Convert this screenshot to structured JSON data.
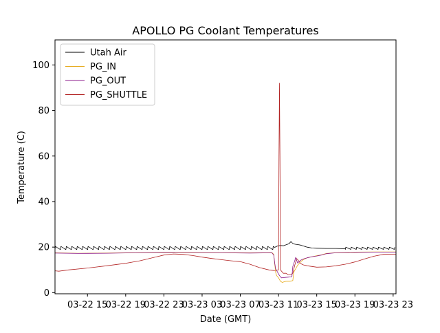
{
  "chart_data": {
    "type": "line",
    "title": "APOLLO PG Coolant Temperatures",
    "xlabel": "Date (GMT)",
    "ylabel": "Temperature (C)",
    "ylim": [
      -0.5,
      111
    ],
    "y_ticks": [
      0,
      20,
      40,
      60,
      80,
      100
    ],
    "x_tick_labels": [
      "03-22 15",
      "03-22 19",
      "03-22 23",
      "03-23 03",
      "03-23 07",
      "03-23 11",
      "03-23 15",
      "03-23 19",
      "03-23 23"
    ],
    "x_tick_hours": [
      15,
      19,
      23,
      27,
      31,
      35,
      39,
      43,
      47
    ],
    "xlim_hours": [
      11.6,
      47.3
    ],
    "legend_position": "upper left",
    "series": [
      {
        "name": "Utah Air",
        "color": "#000000",
        "sawtooth": {
          "start": 11.6,
          "end": 34.6,
          "period": 0.57,
          "low": 18.9,
          "high": 20.3
        },
        "points": [
          [
            34.6,
            19.9
          ],
          [
            34.9,
            20.5
          ],
          [
            35.2,
            20.7
          ],
          [
            35.5,
            20.6
          ],
          [
            35.8,
            21.0
          ],
          [
            36.1,
            21.5
          ],
          [
            36.3,
            22.4
          ],
          [
            36.5,
            21.6
          ],
          [
            36.7,
            21.3
          ],
          [
            37.0,
            21.1
          ],
          [
            37.3,
            20.9
          ],
          [
            37.6,
            20.5
          ],
          [
            38.0,
            20.0
          ],
          [
            38.5,
            19.6
          ],
          [
            39.0,
            19.5
          ],
          [
            40.0,
            19.4
          ],
          [
            41.0,
            19.4
          ],
          [
            42.0,
            19.3
          ]
        ],
        "sawtooth2": {
          "start": 42.0,
          "end": 47.3,
          "period": 0.57,
          "low": 19.0,
          "high": 20.0
        }
      },
      {
        "name": "PG_IN",
        "color": "#e6a817",
        "points": [
          [
            11.6,
            17.5
          ],
          [
            14,
            17.3
          ],
          [
            17,
            17.4
          ],
          [
            20,
            17.6
          ],
          [
            23,
            17.8
          ],
          [
            26,
            17.7
          ],
          [
            29,
            17.6
          ],
          [
            32,
            17.5
          ],
          [
            34.3,
            17.6
          ],
          [
            34.5,
            16.8
          ],
          [
            34.6,
            12.5
          ],
          [
            34.7,
            9.0
          ],
          [
            34.8,
            7.5
          ],
          [
            35.0,
            6.5
          ],
          [
            35.2,
            5.0
          ],
          [
            35.4,
            4.5
          ],
          [
            35.6,
            4.8
          ],
          [
            35.8,
            5.0
          ],
          [
            36.0,
            5.0
          ],
          [
            36.2,
            5.0
          ],
          [
            36.4,
            5.2
          ],
          [
            36.5,
            5.3
          ],
          [
            36.6,
            9.0
          ],
          [
            36.8,
            10.5
          ],
          [
            37.0,
            12.0
          ],
          [
            37.3,
            13.5
          ],
          [
            37.6,
            14.5
          ],
          [
            38.0,
            15.3
          ],
          [
            38.5,
            15.8
          ],
          [
            39.0,
            16.2
          ],
          [
            39.5,
            16.6
          ],
          [
            40,
            17.2
          ],
          [
            41,
            17.6
          ],
          [
            43,
            17.8
          ],
          [
            45,
            17.9
          ],
          [
            47.3,
            17.9
          ]
        ]
      },
      {
        "name": "PG_OUT",
        "color": "#8b1a8b",
        "points": [
          [
            11.6,
            17.4
          ],
          [
            14,
            17.2
          ],
          [
            17,
            17.3
          ],
          [
            20,
            17.5
          ],
          [
            23,
            17.7
          ],
          [
            26,
            17.6
          ],
          [
            29,
            17.5
          ],
          [
            32,
            17.4
          ],
          [
            34.3,
            17.5
          ],
          [
            34.5,
            16.5
          ],
          [
            34.6,
            13.0
          ],
          [
            34.7,
            10.5
          ],
          [
            34.9,
            9.0
          ],
          [
            35.1,
            7.5
          ],
          [
            35.3,
            6.5
          ],
          [
            35.5,
            6.6
          ],
          [
            35.7,
            6.7
          ],
          [
            36.0,
            6.8
          ],
          [
            36.3,
            6.9
          ],
          [
            36.4,
            7.0
          ],
          [
            36.5,
            11.5
          ],
          [
            36.7,
            14.0
          ],
          [
            36.8,
            15.5
          ],
          [
            37.0,
            13.0
          ],
          [
            37.3,
            14.2
          ],
          [
            37.6,
            14.8
          ],
          [
            38,
            15.3
          ],
          [
            38.5,
            15.8
          ],
          [
            39,
            16.1
          ],
          [
            39.5,
            16.5
          ],
          [
            40,
            17.1
          ],
          [
            41,
            17.5
          ],
          [
            43,
            17.7
          ],
          [
            45,
            17.8
          ],
          [
            47.3,
            17.8
          ]
        ]
      },
      {
        "name": "PG_SHUTTLE",
        "color": "#b22222",
        "points": [
          [
            11.6,
            9.6
          ],
          [
            12.0,
            9.4
          ],
          [
            13,
            10.0
          ],
          [
            15,
            10.8
          ],
          [
            17,
            11.8
          ],
          [
            19,
            12.9
          ],
          [
            20.5,
            14.0
          ],
          [
            22,
            15.5
          ],
          [
            23,
            16.5
          ],
          [
            24,
            17.0
          ],
          [
            25,
            16.8
          ],
          [
            26,
            16.3
          ],
          [
            27,
            15.6
          ],
          [
            28,
            15.0
          ],
          [
            29,
            14.5
          ],
          [
            30,
            14.0
          ],
          [
            31,
            13.6
          ],
          [
            32,
            12.5
          ],
          [
            33,
            11.0
          ],
          [
            34,
            10.0
          ],
          [
            34.5,
            9.7
          ],
          [
            34.8,
            9.8
          ],
          [
            35.0,
            10.0
          ],
          [
            35.05,
            60.0
          ],
          [
            35.1,
            92.0
          ],
          [
            35.15,
            60.0
          ],
          [
            35.2,
            10.0
          ],
          [
            35.5,
            8.5
          ],
          [
            35.8,
            8.5
          ],
          [
            36.0,
            7.8
          ],
          [
            36.3,
            8.0
          ],
          [
            36.5,
            8.5
          ],
          [
            36.7,
            12.0
          ],
          [
            36.9,
            15.0
          ],
          [
            37.1,
            14.0
          ],
          [
            37.3,
            12.8
          ],
          [
            37.6,
            12.2
          ],
          [
            38,
            11.8
          ],
          [
            38.5,
            11.5
          ],
          [
            39,
            11.2
          ],
          [
            40,
            11.3
          ],
          [
            41,
            11.8
          ],
          [
            42,
            12.5
          ],
          [
            43,
            13.5
          ],
          [
            44,
            14.8
          ],
          [
            45,
            16.0
          ],
          [
            46,
            16.8
          ],
          [
            47.3,
            16.9
          ]
        ]
      }
    ]
  }
}
